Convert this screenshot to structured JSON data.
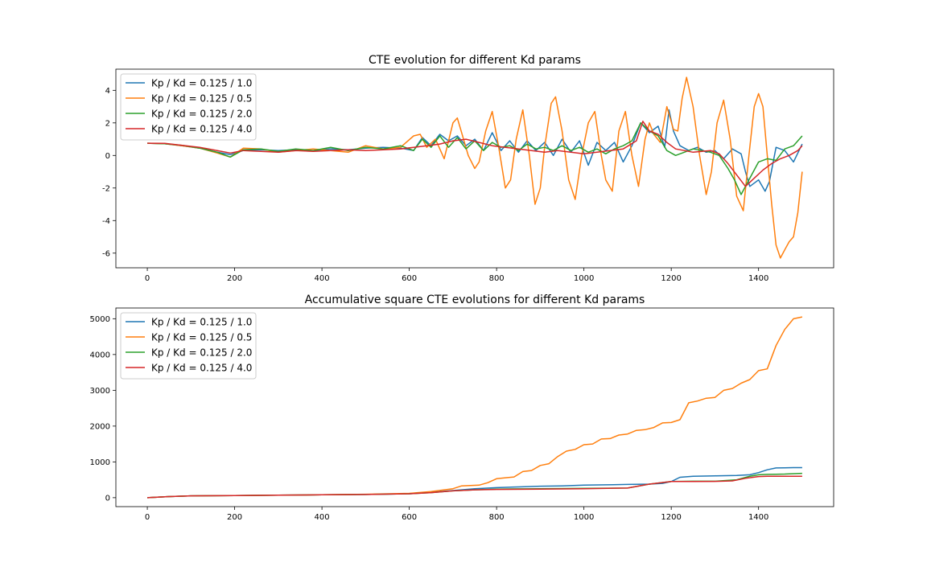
{
  "chart_data": [
    {
      "type": "line",
      "title": "CTE evolution for different Kd params",
      "xlabel": "",
      "ylabel": "",
      "xlim": [
        -72,
        1572
      ],
      "ylim": [
        -6.9,
        5.3
      ],
      "xticks": [
        0,
        200,
        400,
        600,
        800,
        1000,
        1200,
        1400
      ],
      "yticks": [
        -6,
        -4,
        -2,
        0,
        2,
        4
      ],
      "grid": false,
      "legend_position": "upper-left",
      "series": [
        {
          "name": "Kp / Kd = 0.125 / 1.0",
          "color": "#1f77b4",
          "x": [
            0,
            40,
            80,
            120,
            160,
            190,
            220,
            260,
            300,
            340,
            380,
            420,
            460,
            500,
            540,
            580,
            610,
            630,
            650,
            670,
            690,
            710,
            730,
            750,
            770,
            790,
            810,
            830,
            850,
            870,
            890,
            910,
            930,
            950,
            970,
            990,
            1010,
            1030,
            1050,
            1070,
            1090,
            1110,
            1130,
            1150,
            1170,
            1185,
            1195,
            1205,
            1220,
            1240,
            1260,
            1280,
            1300,
            1320,
            1340,
            1360,
            1370,
            1380,
            1400,
            1415,
            1425,
            1440,
            1460,
            1480,
            1500
          ],
          "y": [
            0.75,
            0.72,
            0.6,
            0.45,
            0.2,
            0.05,
            0.3,
            0.35,
            0.3,
            0.35,
            0.3,
            0.4,
            0.35,
            0.45,
            0.5,
            0.45,
            0.3,
            1.1,
            0.6,
            1.3,
            0.9,
            1.2,
            0.6,
            1.0,
            0.3,
            1.4,
            0.3,
            0.9,
            0.2,
            0.9,
            0.3,
            0.8,
            0.0,
            1.0,
            0.2,
            0.9,
            -0.6,
            0.8,
            0.3,
            0.8,
            -0.4,
            0.6,
            2.0,
            1.4,
            1.8,
            0.5,
            2.8,
            1.5,
            0.6,
            0.3,
            0.5,
            0.2,
            0.3,
            -0.2,
            0.4,
            0.1,
            -1.0,
            -1.9,
            -1.5,
            -2.2,
            -1.6,
            0.5,
            0.3,
            -0.4,
            0.7
          ]
        },
        {
          "name": "Kp / Kd = 0.125 / 0.5",
          "color": "#ff7f0e",
          "x": [
            0,
            40,
            80,
            120,
            160,
            190,
            220,
            260,
            300,
            340,
            380,
            420,
            460,
            500,
            540,
            580,
            610,
            625,
            640,
            660,
            680,
            700,
            710,
            720,
            735,
            750,
            760,
            775,
            790,
            805,
            820,
            832,
            845,
            860,
            875,
            888,
            900,
            910,
            925,
            935,
            950,
            965,
            980,
            995,
            1010,
            1025,
            1040,
            1050,
            1065,
            1080,
            1095,
            1110,
            1125,
            1140,
            1150,
            1160,
            1175,
            1190,
            1205,
            1215,
            1225,
            1235,
            1250,
            1265,
            1280,
            1292,
            1305,
            1320,
            1335,
            1350,
            1365,
            1378,
            1390,
            1400,
            1410,
            1420,
            1430,
            1440,
            1450,
            1460,
            1470,
            1480,
            1490,
            1500
          ],
          "y": [
            0.75,
            0.72,
            0.6,
            0.45,
            0.15,
            -0.1,
            0.45,
            0.4,
            0.2,
            0.3,
            0.4,
            0.3,
            0.2,
            0.6,
            0.4,
            0.5,
            1.2,
            1.3,
            0.5,
            1.0,
            -0.2,
            2.0,
            2.3,
            1.4,
            0.0,
            -0.8,
            -0.4,
            1.5,
            2.7,
            0.5,
            -2.0,
            -1.5,
            1.0,
            2.8,
            0.0,
            -3.0,
            -2.0,
            0.5,
            3.2,
            3.6,
            1.5,
            -1.5,
            -2.7,
            0.0,
            2.0,
            2.7,
            0.0,
            -1.5,
            -2.2,
            1.5,
            2.7,
            0.0,
            -1.9,
            1.0,
            2.0,
            1.3,
            0.8,
            3.0,
            1.6,
            1.5,
            3.5,
            4.8,
            3.0,
            0.0,
            -2.4,
            -1.0,
            2.0,
            3.4,
            1.0,
            -2.5,
            -3.4,
            0.0,
            3.0,
            3.8,
            3.0,
            0.0,
            -3.0,
            -5.5,
            -6.3,
            -5.8,
            -5.3,
            -5.0,
            -3.5,
            -1.0
          ]
        },
        {
          "name": "Kp / Kd = 0.125 / 2.0",
          "color": "#2ca02c",
          "x": [
            0,
            40,
            80,
            120,
            160,
            190,
            220,
            260,
            300,
            340,
            380,
            420,
            460,
            500,
            540,
            580,
            610,
            630,
            650,
            670,
            690,
            710,
            730,
            750,
            770,
            790,
            810,
            830,
            850,
            870,
            890,
            910,
            930,
            950,
            970,
            990,
            1010,
            1030,
            1050,
            1070,
            1090,
            1110,
            1130,
            1150,
            1170,
            1190,
            1210,
            1230,
            1250,
            1270,
            1290,
            1310,
            1330,
            1345,
            1360,
            1380,
            1400,
            1420,
            1440,
            1460,
            1480,
            1500
          ],
          "y": [
            0.75,
            0.72,
            0.62,
            0.45,
            0.2,
            -0.1,
            0.35,
            0.4,
            0.25,
            0.4,
            0.3,
            0.5,
            0.3,
            0.5,
            0.4,
            0.6,
            0.3,
            1.0,
            0.5,
            1.2,
            0.5,
            1.1,
            0.4,
            0.9,
            0.3,
            0.8,
            0.5,
            0.6,
            0.3,
            0.7,
            0.4,
            0.5,
            0.3,
            0.6,
            0.3,
            0.5,
            0.2,
            0.4,
            0.1,
            0.4,
            0.6,
            0.9,
            2.0,
            1.5,
            1.2,
            0.3,
            0.0,
            0.2,
            0.4,
            0.3,
            0.2,
            0.0,
            -0.8,
            -1.5,
            -2.4,
            -1.4,
            -0.4,
            -0.2,
            -0.3,
            0.4,
            0.6,
            1.2
          ]
        },
        {
          "name": "Kp / Kd = 0.125 / 4.0",
          "color": "#d62728",
          "x": [
            0,
            40,
            80,
            120,
            160,
            190,
            220,
            260,
            300,
            340,
            380,
            420,
            460,
            500,
            540,
            580,
            610,
            640,
            670,
            700,
            730,
            760,
            790,
            820,
            850,
            880,
            910,
            940,
            970,
            1000,
            1030,
            1060,
            1090,
            1120,
            1135,
            1150,
            1170,
            1190,
            1210,
            1230,
            1250,
            1270,
            1290,
            1310,
            1330,
            1350,
            1370,
            1390,
            1410,
            1430,
            1450,
            1470,
            1490,
            1500
          ],
          "y": [
            0.75,
            0.74,
            0.62,
            0.5,
            0.3,
            0.15,
            0.3,
            0.25,
            0.2,
            0.3,
            0.25,
            0.3,
            0.35,
            0.3,
            0.35,
            0.4,
            0.5,
            0.6,
            0.7,
            0.9,
            1.0,
            0.8,
            0.6,
            0.5,
            0.4,
            0.3,
            0.2,
            0.3,
            0.2,
            0.1,
            0.2,
            0.3,
            0.4,
            0.9,
            2.1,
            1.5,
            1.3,
            0.8,
            0.4,
            0.3,
            0.2,
            0.25,
            0.3,
            0.1,
            -0.5,
            -1.2,
            -1.9,
            -1.4,
            -0.9,
            -0.5,
            -0.2,
            0.0,
            0.3,
            0.6
          ]
        }
      ]
    },
    {
      "type": "line",
      "title": "Accumulative square CTE evolutions for different Kd params",
      "xlabel": "",
      "ylabel": "",
      "xlim": [
        -72,
        1572
      ],
      "ylim": [
        -250,
        5300
      ],
      "xticks": [
        0,
        200,
        400,
        600,
        800,
        1000,
        1200,
        1400
      ],
      "yticks": [
        0,
        1000,
        2000,
        3000,
        4000,
        5000
      ],
      "grid": false,
      "legend_position": "upper-left",
      "series": [
        {
          "name": "Kp / Kd = 0.125 / 1.0",
          "color": "#1f77b4",
          "x": [
            0,
            50,
            100,
            200,
            300,
            400,
            500,
            600,
            650,
            700,
            750,
            800,
            850,
            900,
            950,
            1000,
            1050,
            1100,
            1150,
            1180,
            1200,
            1220,
            1250,
            1300,
            1350,
            1380,
            1400,
            1420,
            1440,
            1460,
            1480,
            1500
          ],
          "y": [
            0,
            30,
            50,
            60,
            70,
            80,
            90,
            110,
            150,
            200,
            250,
            280,
            300,
            320,
            330,
            350,
            360,
            370,
            380,
            400,
            450,
            570,
            600,
            610,
            620,
            640,
            700,
            780,
            830,
            835,
            840,
            840
          ]
        },
        {
          "name": "Kp / Kd = 0.125 / 0.5",
          "color": "#ff7f0e",
          "x": [
            0,
            50,
            100,
            200,
            300,
            400,
            500,
            600,
            650,
            700,
            720,
            760,
            780,
            800,
            840,
            860,
            880,
            900,
            920,
            940,
            960,
            980,
            1000,
            1020,
            1040,
            1060,
            1080,
            1100,
            1120,
            1140,
            1160,
            1180,
            1200,
            1220,
            1240,
            1260,
            1280,
            1300,
            1320,
            1340,
            1360,
            1380,
            1400,
            1420,
            1440,
            1460,
            1480,
            1500
          ],
          "y": [
            0,
            30,
            50,
            60,
            70,
            80,
            95,
            120,
            170,
            250,
            330,
            350,
            420,
            530,
            580,
            730,
            760,
            900,
            950,
            1150,
            1300,
            1350,
            1480,
            1500,
            1640,
            1650,
            1750,
            1780,
            1880,
            1900,
            1960,
            2090,
            2100,
            2180,
            2650,
            2700,
            2780,
            2800,
            3000,
            3050,
            3200,
            3300,
            3550,
            3600,
            4250,
            4700,
            5000,
            5050
          ]
        },
        {
          "name": "Kp / Kd = 0.125 / 2.0",
          "color": "#2ca02c",
          "x": [
            0,
            50,
            100,
            200,
            300,
            400,
            500,
            600,
            650,
            700,
            750,
            800,
            900,
            1000,
            1100,
            1150,
            1200,
            1250,
            1300,
            1350,
            1380,
            1400,
            1420,
            1440,
            1460,
            1500
          ],
          "y": [
            0,
            30,
            50,
            60,
            70,
            80,
            90,
            110,
            140,
            190,
            220,
            240,
            250,
            260,
            270,
            380,
            450,
            460,
            460,
            500,
            600,
            640,
            650,
            655,
            660,
            680
          ]
        },
        {
          "name": "Kp / Kd = 0.125 / 4.0",
          "color": "#d62728",
          "x": [
            0,
            50,
            100,
            200,
            300,
            400,
            500,
            600,
            650,
            700,
            750,
            800,
            900,
            1000,
            1100,
            1150,
            1200,
            1250,
            1300,
            1340,
            1370,
            1400,
            1420,
            1440,
            1460,
            1500
          ],
          "y": [
            0,
            30,
            50,
            60,
            70,
            80,
            90,
            110,
            140,
            190,
            220,
            230,
            240,
            250,
            270,
            380,
            450,
            450,
            455,
            470,
            540,
            590,
            600,
            600,
            600,
            600
          ]
        }
      ]
    }
  ]
}
